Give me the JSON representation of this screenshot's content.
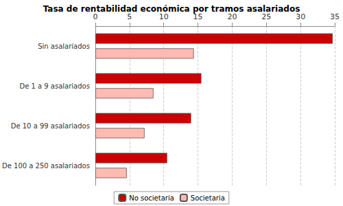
{
  "chart_data": {
    "type": "bar",
    "orientation": "horizontal",
    "title": "Tasa de rentabilidad económica por tramos asalariados",
    "categories": [
      "Sin asalariados",
      "De 1 a 9 asalariados",
      "De 10 a 99 asalariados",
      "De 100 a 250 asalariados"
    ],
    "series": [
      {
        "name": "No societaria",
        "color": "#cc0000",
        "values": [
          34.7,
          15.5,
          14.0,
          10.5
        ]
      },
      {
        "name": "Societaria",
        "color": "#ffbbb3",
        "values": [
          14.4,
          8.5,
          7.2,
          4.6
        ]
      }
    ],
    "xlim": [
      0,
      35
    ],
    "xticks": [
      0,
      5,
      10,
      15,
      20,
      25,
      30,
      35
    ],
    "grid": true,
    "legend": "bottom"
  }
}
